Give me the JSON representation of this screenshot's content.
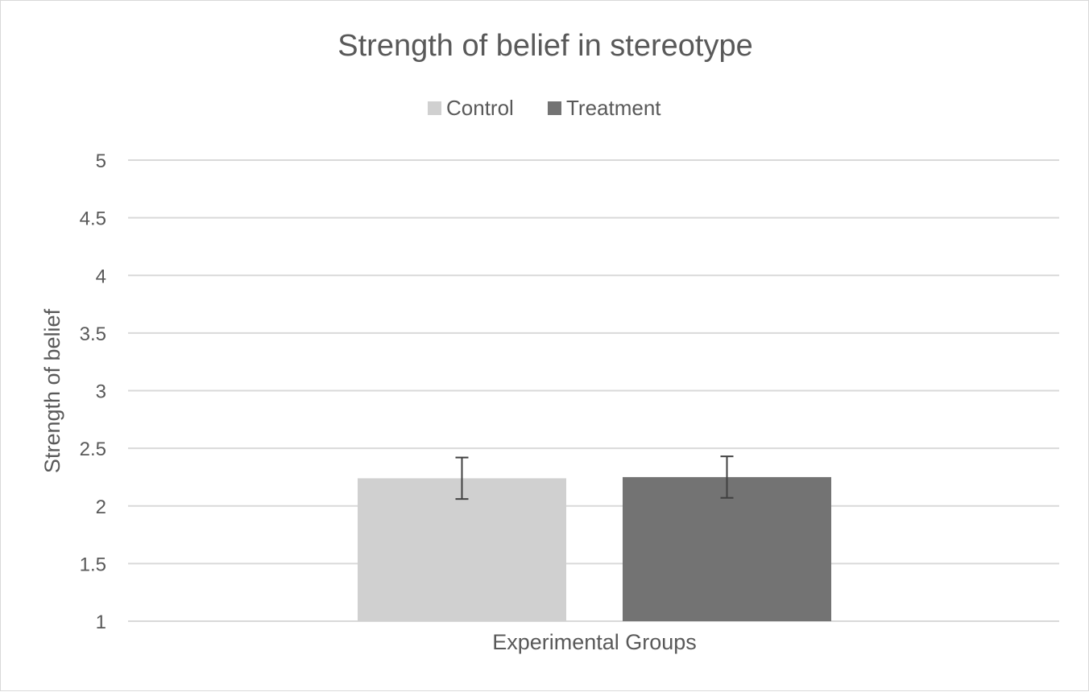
{
  "chart_data": {
    "type": "bar",
    "title": "Strength of belief in stereotype",
    "xlabel": "Experimental Groups",
    "ylabel": "Strength of belief",
    "categories": [
      ""
    ],
    "ylim": [
      1,
      5
    ],
    "yticks": [
      1,
      1.5,
      2,
      2.5,
      3,
      3.5,
      4,
      4.5,
      5
    ],
    "ytick_labels": [
      "1",
      "1.5",
      "2",
      "2.5",
      "3",
      "3.5",
      "4",
      "4.5",
      "5"
    ],
    "grid": true,
    "legend_position": "top",
    "series": [
      {
        "name": "Control",
        "values": [
          2.24
        ],
        "error_low": [
          2.06
        ],
        "error_high": [
          2.42
        ],
        "color": "#d0d0d0"
      },
      {
        "name": "Treatment",
        "values": [
          2.25
        ],
        "error_low": [
          2.07
        ],
        "error_high": [
          2.43
        ],
        "color": "#737373"
      }
    ],
    "colors": {
      "text": "#595959",
      "gridline": "#d9d9d9",
      "error_bar": "#404040"
    }
  }
}
